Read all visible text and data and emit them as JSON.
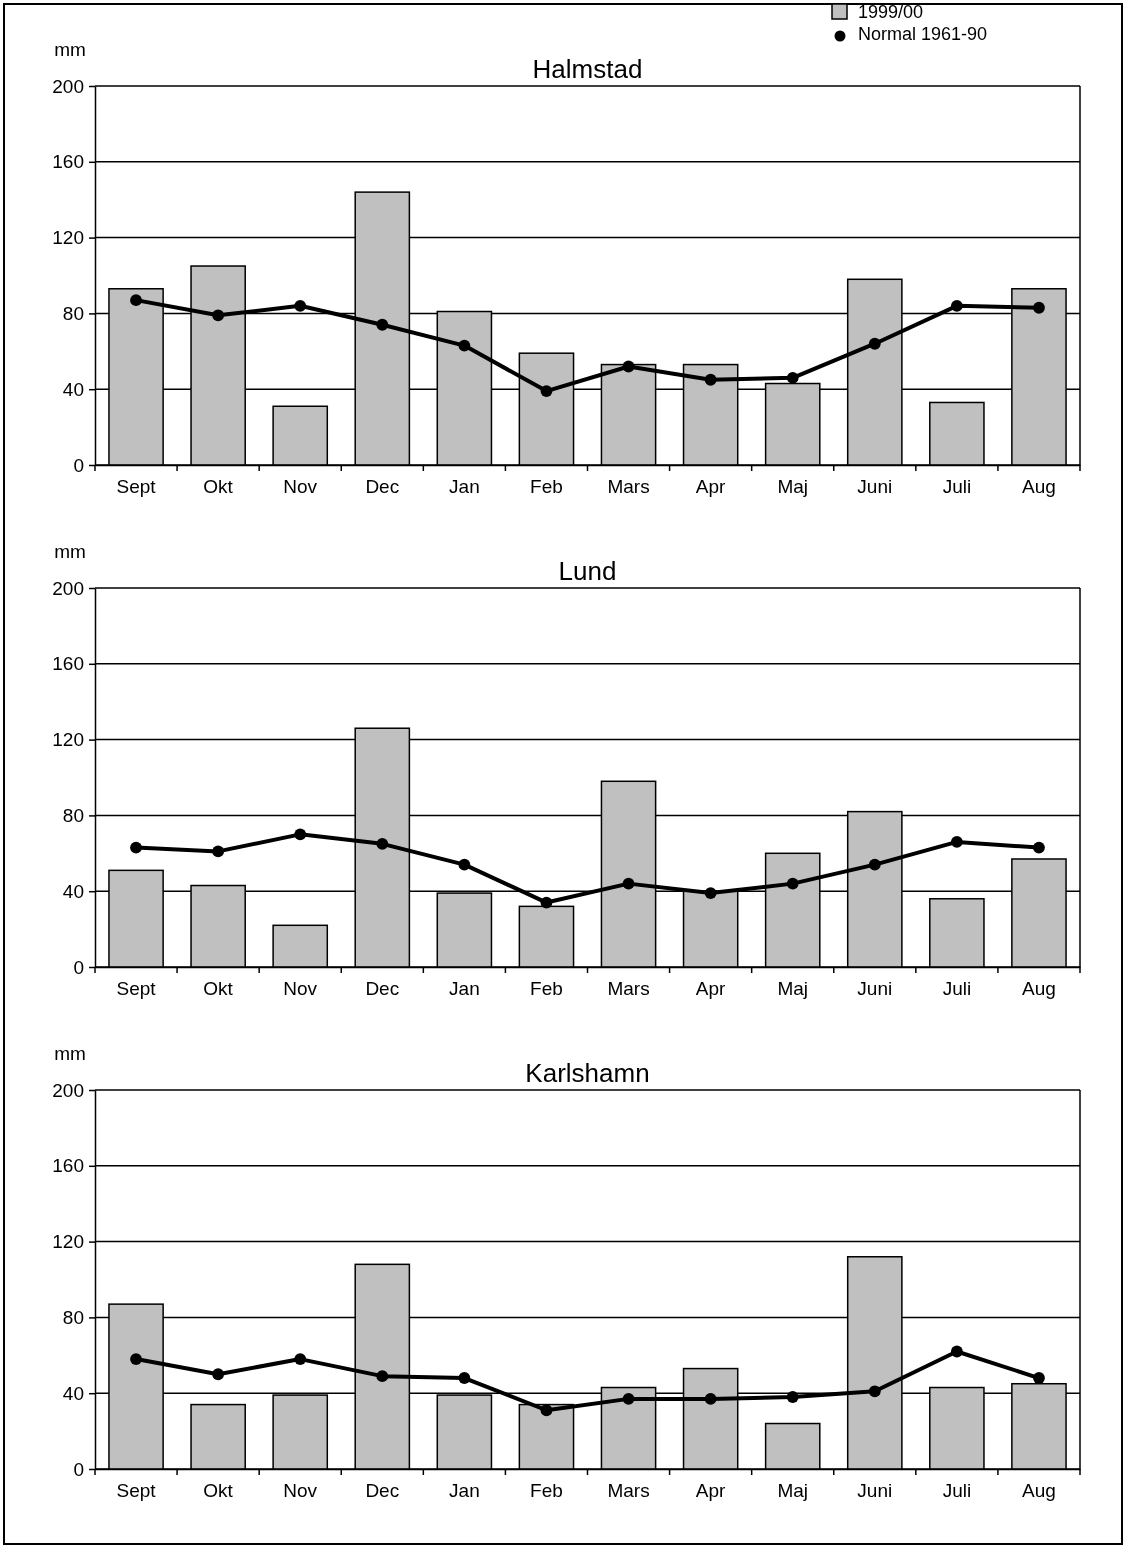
{
  "chart_data": [
    {
      "type": "bar",
      "title": "Halmstad",
      "ylabel": "mm",
      "categories": [
        "Sept",
        "Okt",
        "Nov",
        "Dec",
        "Jan",
        "Feb",
        "Mars",
        "Apr",
        "Maj",
        "Juni",
        "Juli",
        "Aug"
      ],
      "ylim": [
        0,
        200
      ],
      "yticks": [
        0,
        40,
        80,
        120,
        160,
        200
      ],
      "grid": "y",
      "legend": "top right",
      "marker": "circle",
      "series": [
        {
          "name": "1999/00",
          "color": "#c0c0c0",
          "values": [
            93,
            105,
            31,
            144,
            81,
            59,
            53,
            53,
            43,
            98,
            33,
            93
          ]
        },
        {
          "name": "Normal 1961-90",
          "type": "line",
          "color": "#000000",
          "values": [
            87,
            79,
            84,
            74,
            63,
            39,
            52,
            45,
            46,
            64,
            84,
            83
          ]
        }
      ]
    },
    {
      "type": "bar",
      "title": "Lund",
      "ylabel": "mm",
      "categories": [
        "Sept",
        "Okt",
        "Nov",
        "Dec",
        "Jan",
        "Feb",
        "Mars",
        "Apr",
        "Maj",
        "Juni",
        "Juli",
        "Aug"
      ],
      "ylim": [
        0,
        200
      ],
      "yticks": [
        0,
        40,
        80,
        120,
        160,
        200
      ],
      "grid": "y",
      "marker": "circle",
      "series": [
        {
          "color": "#c0c0c0",
          "values": [
            51,
            43,
            22,
            126,
            39,
            32,
            98,
            40,
            60,
            82,
            36,
            57
          ]
        },
        {
          "type": "line",
          "color": "#000000",
          "values": [
            63,
            61,
            70,
            65,
            54,
            34,
            44,
            39,
            44,
            54,
            66,
            63
          ]
        }
      ]
    },
    {
      "type": "bar",
      "title": "Karlshamn",
      "ylabel": "mm",
      "categories": [
        "Sept",
        "Okt",
        "Nov",
        "Dec",
        "Jan",
        "Feb",
        "Mars",
        "Apr",
        "Maj",
        "Juni",
        "Juli",
        "Aug"
      ],
      "ylim": [
        0,
        200
      ],
      "yticks": [
        0,
        40,
        80,
        120,
        160,
        200
      ],
      "grid": "y",
      "marker": "circle",
      "series": [
        {
          "color": "#c0c0c0",
          "values": [
            87,
            34,
            39,
            108,
            39,
            34,
            43,
            53,
            24,
            112,
            43,
            45
          ]
        },
        {
          "type": "line",
          "color": "#000000",
          "values": [
            58,
            50,
            58,
            49,
            48,
            31,
            37,
            37,
            38,
            41,
            62,
            48
          ]
        }
      ]
    }
  ]
}
